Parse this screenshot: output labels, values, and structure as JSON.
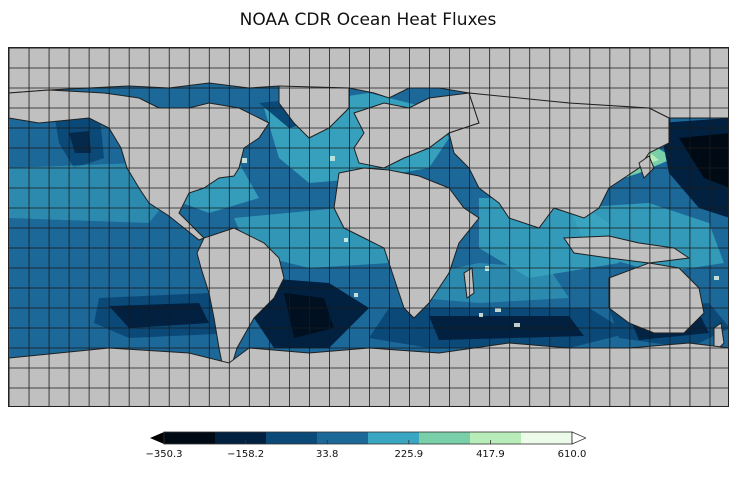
{
  "title": "NOAA CDR Ocean Heat Fluxes",
  "colors": {
    "land": "#c0c0c0",
    "coast": "#202020",
    "grid": "#1a1a1a",
    "ocean_base": "#1c6899",
    "palette": [
      "#000a14",
      "#02203f",
      "#0b4a78",
      "#1c6899",
      "#3aa6c1",
      "#78cfa8",
      "#b8ecb9",
      "#ecfbea"
    ]
  },
  "colorbar": {
    "labels": [
      "−350.3",
      "−158.2",
      "33.8",
      "225.9",
      "417.9",
      "610.0"
    ],
    "min": -350.3,
    "max": 610.0,
    "under_color": "#000000",
    "over_color": "#ffffff"
  },
  "map": {
    "projection": "equirectangular",
    "grid": true,
    "grid_interval_deg": 10,
    "lon_range": [
      -180,
      180
    ],
    "lat_range": [
      -90,
      90
    ]
  }
}
